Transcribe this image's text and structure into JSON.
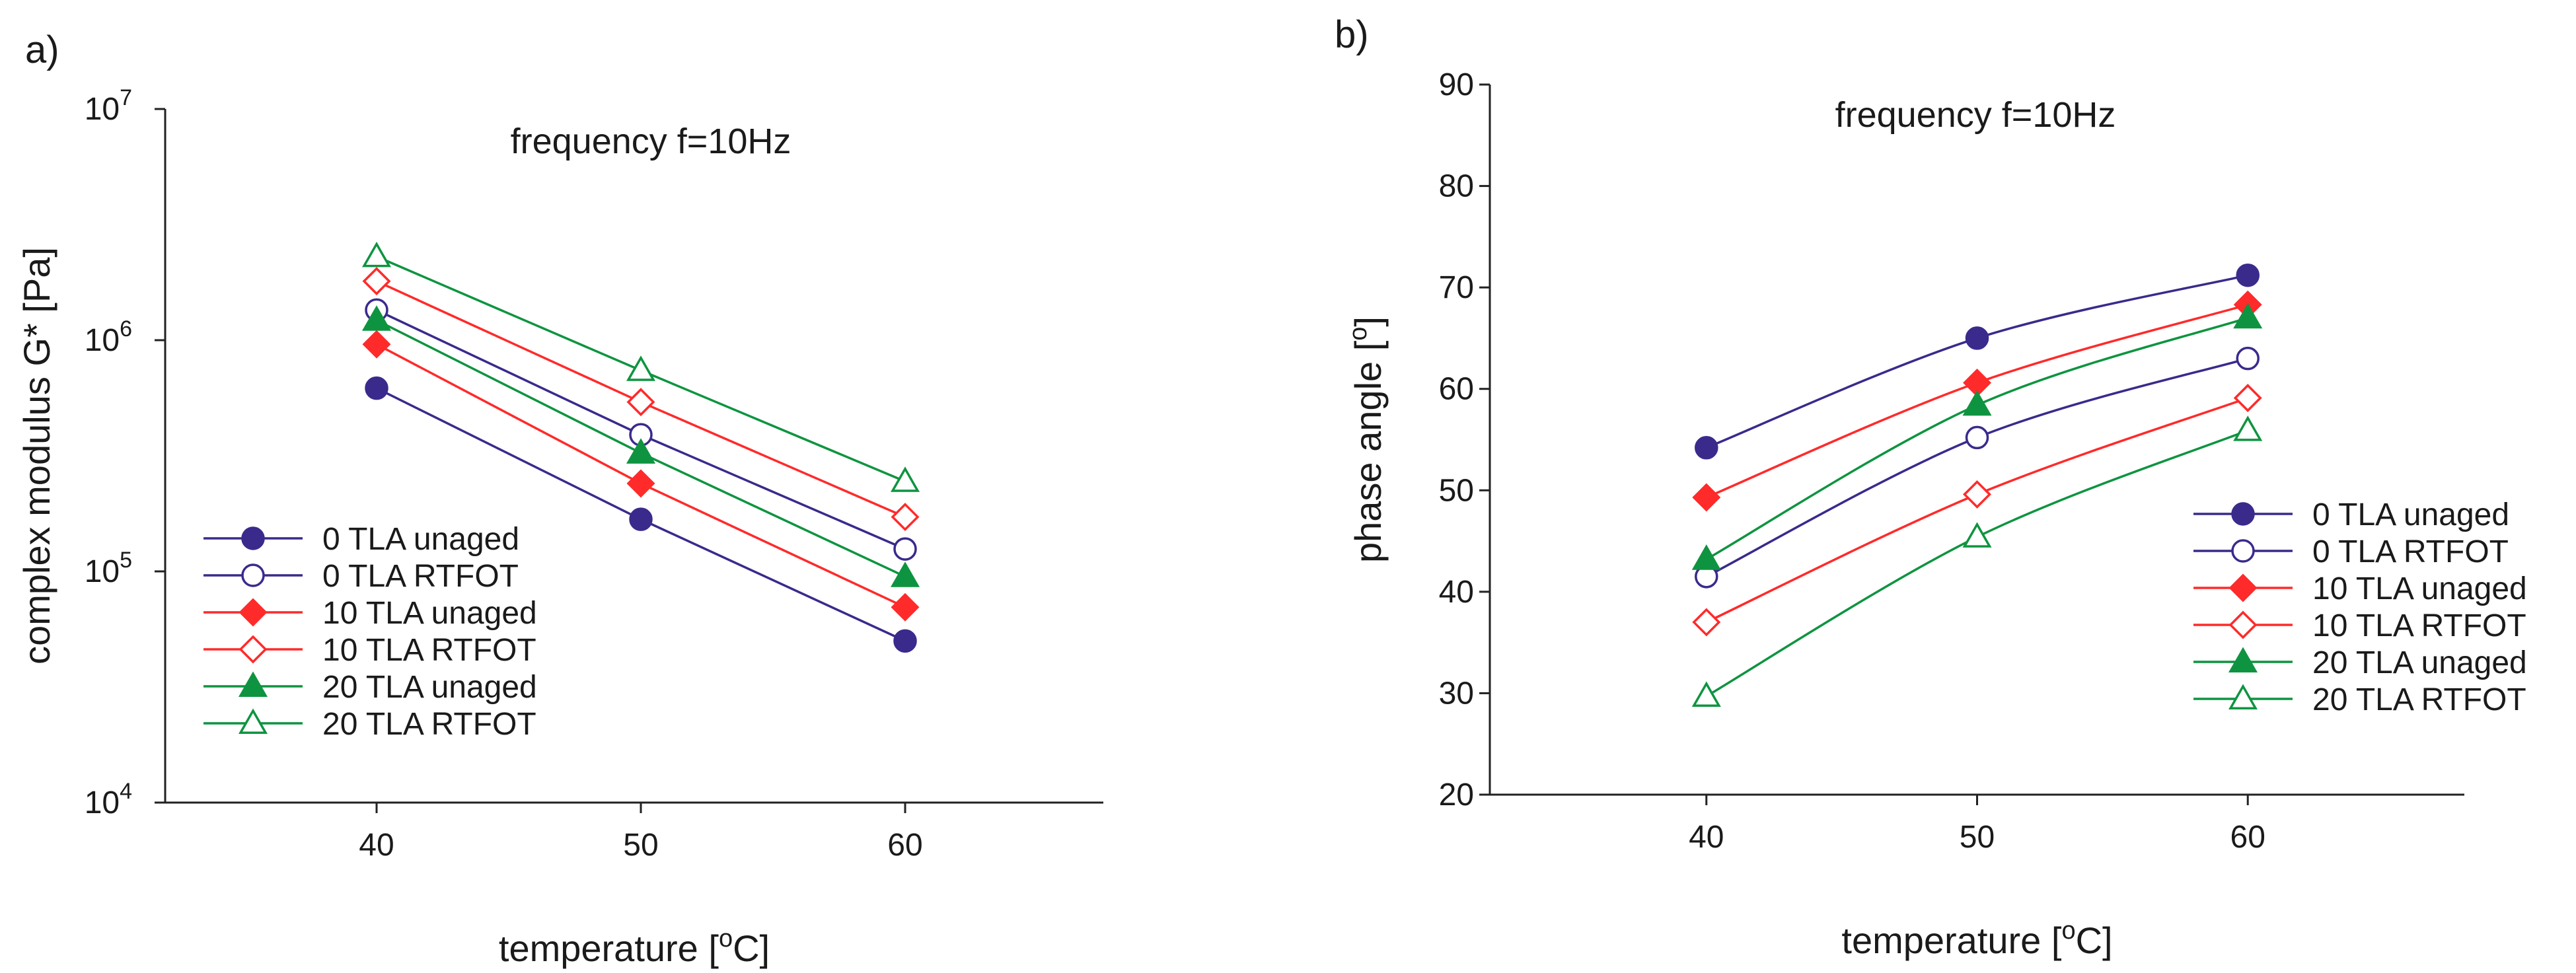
{
  "chart_data": [
    {
      "type": "line",
      "panel_label": "a)",
      "annotation": "frequency f=10Hz",
      "xlabel": "temperature",
      "xlabel_unit_prefix": " [",
      "xlabel_unit_sup": "o",
      "xlabel_unit_suffix": "C]",
      "ylabel": "complex modulus G* [Pa]",
      "yscale": "log",
      "x": [
        40,
        50,
        60
      ],
      "xlim": [
        32,
        67.5
      ],
      "xticks": [
        40,
        50,
        60
      ],
      "ylim": [
        10000,
        10000000
      ],
      "yticks": [
        {
          "base": "10",
          "exp": "4",
          "value": 10000
        },
        {
          "base": "10",
          "exp": "5",
          "value": 100000
        },
        {
          "base": "10",
          "exp": "6",
          "value": 1000000
        },
        {
          "base": "10",
          "exp": "7",
          "value": 10000000
        }
      ],
      "legend_position": "bottom-left",
      "series": [
        {
          "name": "0 TLA unaged",
          "color": "#3a2a8c",
          "marker": "circle",
          "filled": true,
          "values": [
            620000,
            168000,
            50000
          ]
        },
        {
          "name": "0 TLA RTFOT",
          "color": "#3a2a8c",
          "marker": "circle",
          "filled": false,
          "values": [
            1350000,
            390000,
            125000
          ]
        },
        {
          "name": "10 TLA unaged",
          "color": "#ff2a2a",
          "marker": "diamond",
          "filled": true,
          "values": [
            960000,
            240000,
            70000
          ]
        },
        {
          "name": "10 TLA RTFOT",
          "color": "#ff2a2a",
          "marker": "diamond",
          "filled": false,
          "values": [
            1800000,
            540000,
            172000
          ]
        },
        {
          "name": "20 TLA unaged",
          "color": "#0e9440",
          "marker": "triangle",
          "filled": true,
          "values": [
            1220000,
            325000,
            95000
          ]
        },
        {
          "name": "20 TLA RTFOT",
          "color": "#0e9440",
          "marker": "triangle",
          "filled": false,
          "values": [
            2300000,
            740000,
            245000
          ]
        }
      ]
    },
    {
      "type": "line",
      "panel_label": "b)",
      "annotation": "frequency f=10Hz",
      "xlabel": "temperature",
      "xlabel_unit_prefix": " [",
      "xlabel_unit_sup": "o",
      "xlabel_unit_suffix": "C]",
      "ylabel": "phase angle",
      "ylabel_unit_prefix": " [",
      "ylabel_unit_sup": "o",
      "ylabel_unit_suffix": "]",
      "yscale": "linear",
      "x": [
        40,
        50,
        60
      ],
      "xlim": [
        32,
        68
      ],
      "xticks": [
        40,
        50,
        60
      ],
      "ylim": [
        20,
        90
      ],
      "yticks": [
        20,
        30,
        40,
        50,
        60,
        70,
        80,
        90
      ],
      "legend_position": "bottom-right",
      "series": [
        {
          "name": "0 TLA unaged",
          "color": "#3a2a8c",
          "marker": "circle",
          "filled": true,
          "values": [
            54.2,
            65.0,
            71.2
          ]
        },
        {
          "name": "0 TLA RTFOT",
          "color": "#3a2a8c",
          "marker": "circle",
          "filled": false,
          "values": [
            41.5,
            55.2,
            63.0
          ]
        },
        {
          "name": "10 TLA unaged",
          "color": "#ff2a2a",
          "marker": "diamond",
          "filled": true,
          "values": [
            49.3,
            60.6,
            68.3
          ]
        },
        {
          "name": "10 TLA RTFOT",
          "color": "#ff2a2a",
          "marker": "diamond",
          "filled": false,
          "values": [
            37.0,
            49.6,
            59.1
          ]
        },
        {
          "name": "20 TLA unaged",
          "color": "#0e9440",
          "marker": "triangle",
          "filled": true,
          "values": [
            43.2,
            58.4,
            67.0
          ]
        },
        {
          "name": "20 TLA RTFOT",
          "color": "#0e9440",
          "marker": "triangle",
          "filled": false,
          "values": [
            29.7,
            45.4,
            55.9
          ]
        }
      ]
    }
  ]
}
